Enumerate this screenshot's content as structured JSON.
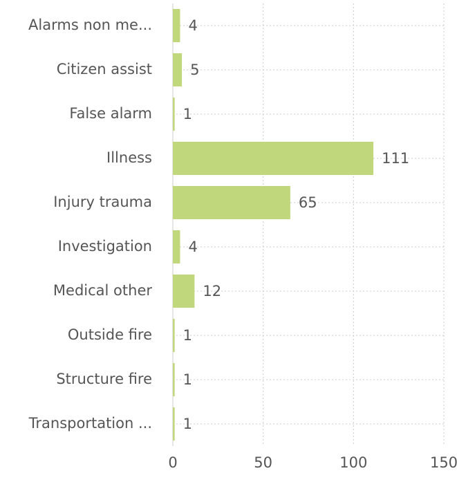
{
  "chart_data": {
    "type": "bar",
    "orientation": "horizontal",
    "categories": [
      "Alarms non me...",
      "Citizen assist",
      "False alarm",
      "Illness",
      "Injury trauma",
      "Investigation",
      "Medical other",
      "Outside fire",
      "Structure fire",
      "Transportation ..."
    ],
    "values": [
      4,
      5,
      1,
      111,
      65,
      4,
      12,
      1,
      1,
      1
    ],
    "color": "#c0d77c",
    "xlim": [
      0,
      150
    ],
    "xticks": [
      0,
      50,
      100,
      150
    ],
    "grid": true
  }
}
